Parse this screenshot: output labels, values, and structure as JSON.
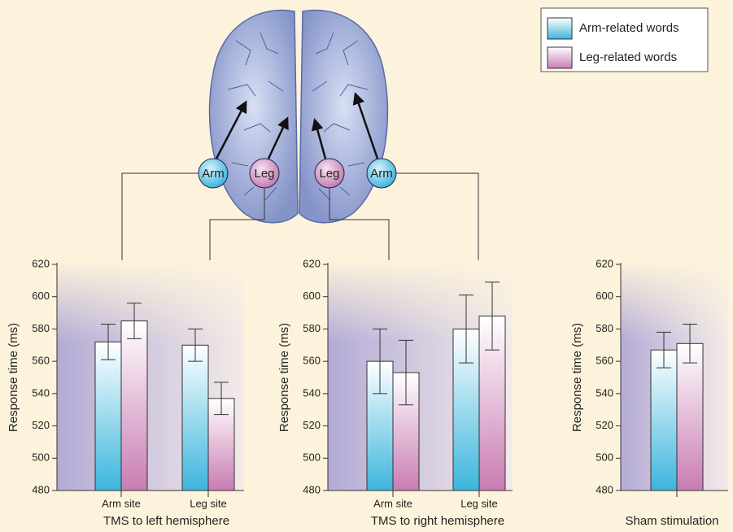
{
  "diagram": {
    "labels": [
      "Arm",
      "Leg",
      "Leg",
      "Arm"
    ]
  },
  "chart_data": [
    {
      "type": "bar",
      "ylabel": "Response time (ms)",
      "xlabel": "TMS to left hemisphere",
      "categories": [
        "Arm site",
        "Leg site"
      ],
      "series": [
        {
          "name": "Arm-related words",
          "color": "#3cb5dc",
          "values": [
            572,
            570
          ],
          "errors": [
            11,
            10
          ]
        },
        {
          "name": "Leg-related words",
          "color": "#c97cb2",
          "values": [
            585,
            537
          ],
          "errors": [
            11,
            10
          ]
        }
      ],
      "ylim": [
        480,
        620
      ],
      "yticks": [
        480,
        500,
        520,
        540,
        560,
        580,
        600,
        620
      ]
    },
    {
      "type": "bar",
      "ylabel": "Response time (ms)",
      "xlabel": "TMS to right hemisphere",
      "categories": [
        "Arm site",
        "Leg site"
      ],
      "series": [
        {
          "color": "#3cb5dc",
          "values": [
            560,
            580
          ],
          "errors": [
            20,
            21
          ]
        },
        {
          "color": "#c97cb2",
          "values": [
            553,
            588
          ],
          "errors": [
            20,
            21
          ]
        }
      ],
      "ylim": [
        480,
        620
      ],
      "yticks": [
        480,
        500,
        520,
        540,
        560,
        580,
        600,
        620
      ]
    },
    {
      "type": "bar",
      "ylabel": "Response time (ms)",
      "xlabel": "Sham stimulation",
      "categories": [
        null
      ],
      "series": [
        {
          "color": "#3cb5dc",
          "values": [
            567
          ],
          "errors": [
            11
          ]
        },
        {
          "color": "#c97cb2",
          "values": [
            571
          ],
          "errors": [
            12
          ]
        }
      ],
      "ylim": [
        480,
        620
      ],
      "yticks": [
        480,
        500,
        520,
        540,
        560,
        580,
        600,
        620
      ]
    }
  ]
}
